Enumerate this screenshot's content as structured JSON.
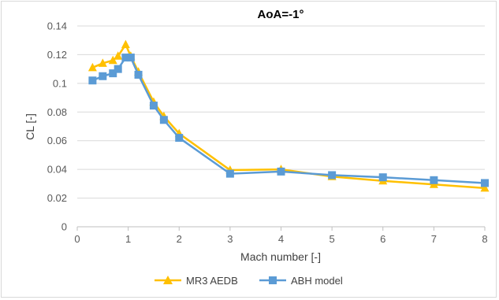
{
  "chart_data": {
    "type": "line",
    "title": "AoA=-1°",
    "xlabel": "Mach number [-]",
    "ylabel": "CL [-]",
    "xlim": [
      0,
      8
    ],
    "ylim": [
      0,
      0.14
    ],
    "xticks": [
      0,
      1,
      2,
      3,
      4,
      5,
      6,
      7,
      8
    ],
    "yticks": [
      0,
      0.02,
      0.04,
      0.06,
      0.08,
      0.1,
      0.12,
      0.14
    ],
    "xtick_labels": [
      "0",
      "1",
      "2",
      "3",
      "4",
      "5",
      "6",
      "7",
      "8"
    ],
    "ytick_labels": [
      "0",
      "0.02",
      "0.04",
      "0.06",
      "0.08",
      "0.1",
      "0.12",
      "0.14"
    ],
    "grid": "horizontal",
    "legend_position": "bottom",
    "series": [
      {
        "name": "MR3 AEDB",
        "color": "#ffc000",
        "marker": "triangle",
        "x": [
          0.3,
          0.5,
          0.7,
          0.8,
          0.95,
          1.05,
          1.2,
          1.5,
          1.7,
          2,
          3,
          4,
          5,
          6,
          7,
          8
        ],
        "y": [
          0.111,
          0.114,
          0.116,
          0.119,
          0.127,
          0.119,
          0.108,
          0.087,
          0.077,
          0.065,
          0.0395,
          0.04,
          0.035,
          0.032,
          0.0295,
          0.027
        ]
      },
      {
        "name": "ABH model",
        "color": "#5b9bd5",
        "marker": "square",
        "x": [
          0.3,
          0.5,
          0.7,
          0.8,
          0.95,
          1.05,
          1.2,
          1.5,
          1.7,
          2,
          3,
          4,
          5,
          6,
          7,
          8
        ],
        "y": [
          0.102,
          0.105,
          0.107,
          0.11,
          0.118,
          0.118,
          0.106,
          0.0845,
          0.0745,
          0.062,
          0.037,
          0.0385,
          0.036,
          0.0345,
          0.0325,
          0.0305
        ]
      }
    ]
  }
}
